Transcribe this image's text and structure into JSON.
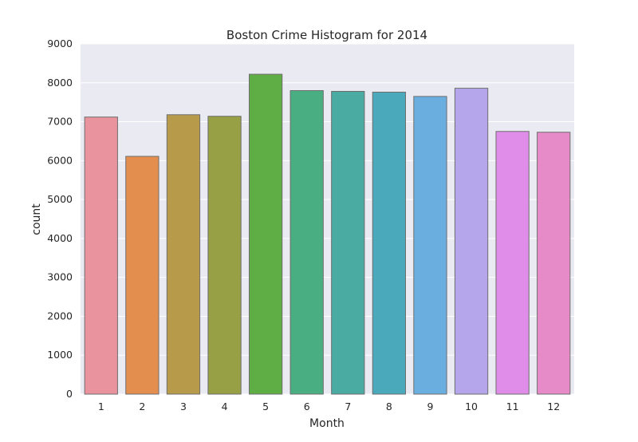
{
  "chart_data": {
    "type": "bar",
    "title": "Boston Crime Histogram for 2014",
    "xlabel": "Month",
    "ylabel": "count",
    "categories": [
      "1",
      "2",
      "3",
      "4",
      "5",
      "6",
      "7",
      "8",
      "9",
      "10",
      "11",
      "12"
    ],
    "values": [
      7120,
      6110,
      7180,
      7140,
      8220,
      7800,
      7780,
      7760,
      7650,
      7860,
      6750,
      6730
    ],
    "ylim": [
      0,
      9000
    ],
    "yticks": [
      "0",
      "1000",
      "2000",
      "3000",
      "4000",
      "5000",
      "6000",
      "7000",
      "8000",
      "9000"
    ],
    "grid": true,
    "colors": {
      "background": "#eaeaf2",
      "grid": "#ffffff",
      "bar_edge": "#6e6e6e",
      "bars": [
        "#e8939e",
        "#e38e4e",
        "#b89b4a",
        "#97a044",
        "#5ead45",
        "#4aae83",
        "#49aba2",
        "#4aa9ba",
        "#6aaee0",
        "#b5a6ec",
        "#df8de8",
        "#e78bc8"
      ]
    }
  }
}
